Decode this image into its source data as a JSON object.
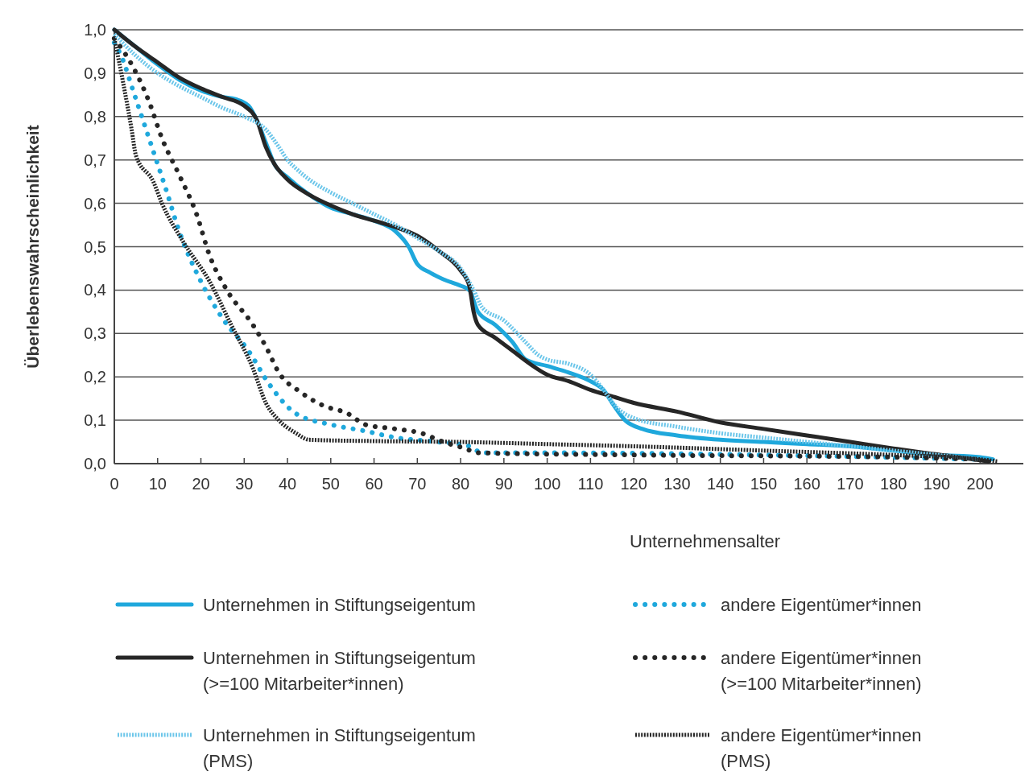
{
  "chart_data": {
    "type": "line",
    "xlabel": "Unternehmensalter",
    "ylabel": "Überlebenswahrscheinlichkeit",
    "xlim": [
      0,
      210
    ],
    "ylim": [
      0,
      1
    ],
    "xticks": [
      0,
      10,
      20,
      30,
      40,
      50,
      60,
      70,
      80,
      90,
      100,
      110,
      120,
      130,
      140,
      150,
      160,
      170,
      180,
      190,
      200
    ],
    "yticks": [
      {
        "value": 0,
        "label": "0,0"
      },
      {
        "value": 0.1,
        "label": "0,1"
      },
      {
        "value": 0.2,
        "label": "0,2"
      },
      {
        "value": 0.3,
        "label": "0,3"
      },
      {
        "value": 0.4,
        "label": "0,4"
      },
      {
        "value": 0.5,
        "label": "0,5"
      },
      {
        "value": 0.6,
        "label": "0,6"
      },
      {
        "value": 0.7,
        "label": "0,7"
      },
      {
        "value": 0.8,
        "label": "0,8"
      },
      {
        "value": 0.9,
        "label": "0,9"
      },
      {
        "value": 1,
        "label": "1,0"
      }
    ],
    "grid": "y",
    "legend": "bottom",
    "marker": "none",
    "series": [
      {
        "name": "Unternehmen in Stiftungseigentum",
        "color": "#1fa8dc",
        "line_style": "solid",
        "x": [
          0,
          5,
          10,
          15,
          20,
          25,
          28,
          31,
          33,
          35,
          37,
          40,
          45,
          50,
          55,
          60,
          65,
          68,
          70,
          73,
          76,
          80,
          82,
          84,
          88,
          92,
          95,
          100,
          105,
          110,
          113,
          115,
          118,
          122,
          130,
          140,
          150,
          160,
          170,
          180,
          190,
          200,
          203
        ],
        "values": [
          1.0,
          0.96,
          0.92,
          0.885,
          0.86,
          0.845,
          0.84,
          0.825,
          0.79,
          0.74,
          0.69,
          0.66,
          0.62,
          0.59,
          0.575,
          0.56,
          0.535,
          0.5,
          0.46,
          0.44,
          0.425,
          0.41,
          0.4,
          0.35,
          0.32,
          0.28,
          0.24,
          0.225,
          0.21,
          0.19,
          0.17,
          0.14,
          0.1,
          0.08,
          0.065,
          0.055,
          0.05,
          0.045,
          0.04,
          0.03,
          0.02,
          0.015,
          0.01
        ]
      },
      {
        "name": "andere Eigentümer*innen",
        "color": "#1fa8dc",
        "line_style": "dotted",
        "x": [
          0,
          2,
          4,
          8,
          12,
          15,
          20,
          25,
          31,
          36,
          42,
          50,
          58,
          65,
          75,
          82,
          85,
          100,
          150,
          200
        ],
        "values": [
          0.97,
          0.93,
          0.87,
          0.75,
          0.63,
          0.535,
          0.42,
          0.335,
          0.26,
          0.18,
          0.115,
          0.09,
          0.075,
          0.06,
          0.05,
          0.04,
          0.025,
          0.025,
          0.02,
          0.01
        ]
      },
      {
        "name": "Unternehmen in Stiftungseigentum\n(>=100 Mitarbeiter*innen)",
        "color": "#262626",
        "line_style": "solid",
        "x": [
          0,
          5,
          10,
          15,
          20,
          25,
          30,
          33,
          35,
          37,
          40,
          45,
          50,
          55,
          60,
          65,
          70,
          75,
          80,
          82,
          83,
          84,
          88,
          92,
          96,
          100,
          105,
          110,
          115,
          120,
          130,
          140,
          150,
          160,
          170,
          180,
          187,
          195,
          202
        ],
        "values": [
          1.0,
          0.96,
          0.925,
          0.89,
          0.865,
          0.845,
          0.825,
          0.79,
          0.73,
          0.69,
          0.655,
          0.62,
          0.595,
          0.575,
          0.56,
          0.545,
          0.525,
          0.49,
          0.445,
          0.41,
          0.35,
          0.32,
          0.29,
          0.26,
          0.23,
          0.205,
          0.19,
          0.17,
          0.155,
          0.14,
          0.12,
          0.095,
          0.08,
          0.065,
          0.05,
          0.035,
          0.025,
          0.015,
          0.005
        ]
      },
      {
        "name": "andere Eigentümer*innen\n(>=100 Mitarbeiter*innen)",
        "color": "#262626",
        "line_style": "dotted",
        "x": [
          0,
          4,
          8,
          11,
          15,
          19,
          22,
          26,
          32,
          35,
          38,
          43,
          48,
          54,
          58,
          65,
          71,
          76,
          81,
          84,
          120,
          180,
          200
        ],
        "values": [
          0.98,
          0.92,
          0.835,
          0.75,
          0.665,
          0.575,
          0.48,
          0.4,
          0.32,
          0.27,
          0.21,
          0.165,
          0.135,
          0.115,
          0.09,
          0.08,
          0.07,
          0.05,
          0.035,
          0.025,
          0.02,
          0.015,
          0.01
        ]
      },
      {
        "name": "Unternehmen in Stiftungseigentum\n(PMS)",
        "color": "#6cc6ea",
        "line_style": "dashed",
        "x": [
          0,
          5,
          10,
          15,
          20,
          25,
          30,
          35,
          38,
          40,
          42,
          45,
          50,
          55,
          60,
          65,
          70,
          75,
          80,
          83,
          85,
          90,
          95,
          98,
          100,
          105,
          110,
          113,
          116,
          120,
          130,
          140,
          150,
          160,
          170,
          180,
          190,
          200
        ],
        "values": [
          0.99,
          0.94,
          0.9,
          0.87,
          0.845,
          0.82,
          0.8,
          0.77,
          0.73,
          0.7,
          0.68,
          0.655,
          0.625,
          0.6,
          0.575,
          0.55,
          0.52,
          0.49,
          0.45,
          0.4,
          0.36,
          0.33,
          0.28,
          0.25,
          0.24,
          0.23,
          0.205,
          0.17,
          0.13,
          0.105,
          0.085,
          0.07,
          0.06,
          0.05,
          0.04,
          0.03,
          0.02,
          0.01
        ]
      },
      {
        "name": "andere Eigentümer*innen\n(PMS)",
        "color": "#262626",
        "line_style": "dashed",
        "x": [
          0,
          2,
          4,
          5,
          9,
          11,
          16,
          22,
          27,
          32,
          35,
          38,
          42,
          45,
          60,
          80,
          100,
          120,
          150,
          180,
          200,
          204
        ],
        "values": [
          0.98,
          0.88,
          0.77,
          0.71,
          0.65,
          0.6,
          0.51,
          0.42,
          0.32,
          0.22,
          0.14,
          0.1,
          0.07,
          0.055,
          0.052,
          0.05,
          0.045,
          0.04,
          0.03,
          0.02,
          0.01,
          0.005
        ]
      }
    ]
  }
}
